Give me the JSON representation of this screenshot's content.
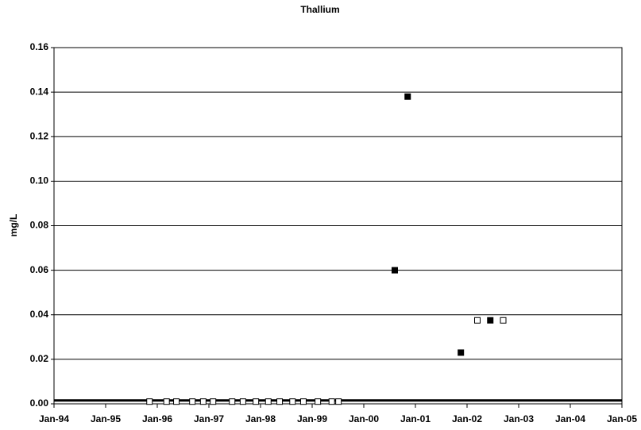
{
  "chart_data": {
    "type": "scatter",
    "title": "Thallium",
    "ylabel": "mg/L",
    "xlim": [
      1994,
      2005
    ],
    "xticks": [
      {
        "value": 1994,
        "label": "Jan-94"
      },
      {
        "value": 1995,
        "label": "Jan-95"
      },
      {
        "value": 1996,
        "label": "Jan-96"
      },
      {
        "value": 1997,
        "label": "Jan-97"
      },
      {
        "value": 1998,
        "label": "Jan-98"
      },
      {
        "value": 1999,
        "label": "Jan-99"
      },
      {
        "value": 2000,
        "label": "Jan-00"
      },
      {
        "value": 2001,
        "label": "Jan-01"
      },
      {
        "value": 2002,
        "label": "Jan-02"
      },
      {
        "value": 2003,
        "label": "Jan-03"
      },
      {
        "value": 2004,
        "label": "Jan-04"
      },
      {
        "value": 2005,
        "label": "Jan-05"
      }
    ],
    "ylim": [
      0,
      0.16
    ],
    "yticks": [
      {
        "value": 0,
        "label": "0.00"
      },
      {
        "value": 0.02,
        "label": "0.02"
      },
      {
        "value": 0.04,
        "label": "0.04"
      },
      {
        "value": 0.06,
        "label": "0.06"
      },
      {
        "value": 0.08,
        "label": "0.08"
      },
      {
        "value": 0.1,
        "label": "0.10"
      },
      {
        "value": 0.12,
        "label": "0.12"
      },
      {
        "value": 0.14,
        "label": "0.14"
      },
      {
        "value": 0.16,
        "label": "0.16"
      }
    ],
    "grid": true,
    "hline": 0.0015,
    "series": [
      {
        "color": "#000000",
        "fill": "#000000",
        "x": [
          2000.6,
          2000.85,
          2001.88,
          2002.45
        ],
        "values": [
          0.06,
          0.138,
          0.023,
          0.0375
        ]
      },
      {
        "color": "#000000",
        "fill": "#ffffff",
        "x": [
          1995.85,
          1996.18,
          1996.37,
          1996.68,
          1996.89,
          1997.08,
          1997.45,
          1997.66,
          1997.91,
          1998.15,
          1998.37,
          1998.62,
          1998.83,
          1999.11,
          1999.38,
          1999.51,
          2002.2,
          2002.7
        ],
        "values": [
          0.001,
          0.001,
          0.001,
          0.001,
          0.001,
          0.001,
          0.001,
          0.001,
          0.001,
          0.001,
          0.001,
          0.001,
          0.001,
          0.001,
          0.001,
          0.001,
          0.0375,
          0.0375
        ]
      }
    ]
  }
}
